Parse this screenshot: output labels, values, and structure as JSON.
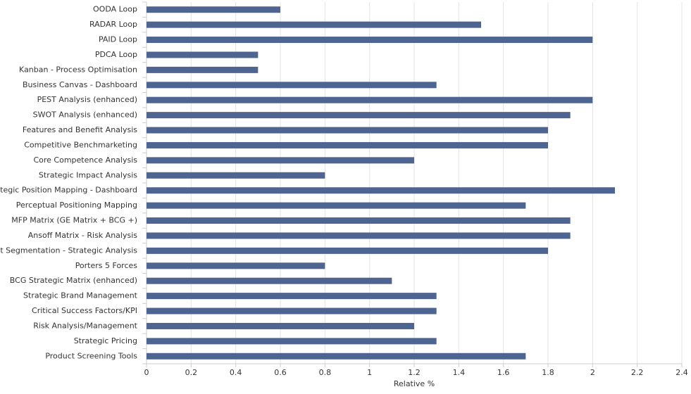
{
  "chart_data": {
    "type": "barh",
    "x_label": "Relative %",
    "categories": [
      "OODA Loop",
      "RADAR Loop",
      "PAID Loop",
      "PDCA Loop",
      "Kanban - Process Optimisation",
      "Business Canvas - Dashboard",
      "PEST Analysis (enhanced)",
      "SWOT Analysis (enhanced)",
      "Features and Benefit Analysis",
      "Competitive Benchmarketing",
      "Core Competence Analysis",
      "Strategic Impact Analysis",
      "Strategic Position Mapping - Dashboard",
      "Perceptual Positioning Mapping",
      "MFP Matrix (GE Matrix + BCG +)",
      "Ansoff Matrix - Risk Analysis",
      "Market Segmentation - Strategic Analysis",
      "Porters 5 Forces",
      "BCG Strategic Matrix (enhanced)",
      "Strategic Brand Management",
      "Critical Success Factors/KPI",
      "Risk Analysis/Management",
      "Strategic Pricing",
      "Product Screening Tools"
    ],
    "values": [
      0.6,
      1.5,
      2.0,
      0.5,
      0.5,
      1.3,
      2.0,
      1.9,
      1.8,
      1.8,
      1.2,
      0.8,
      2.1,
      1.7,
      1.9,
      1.9,
      1.8,
      0.8,
      1.1,
      1.3,
      1.3,
      1.2,
      1.3,
      1.7
    ],
    "color": "#4e6591",
    "xlim": [
      0,
      2.4
    ],
    "xticks": [
      0,
      0.2,
      0.4,
      0.6,
      0.8,
      1,
      1.2,
      1.4,
      1.6,
      1.8,
      2,
      2.2,
      2.4
    ],
    "grid": true
  }
}
